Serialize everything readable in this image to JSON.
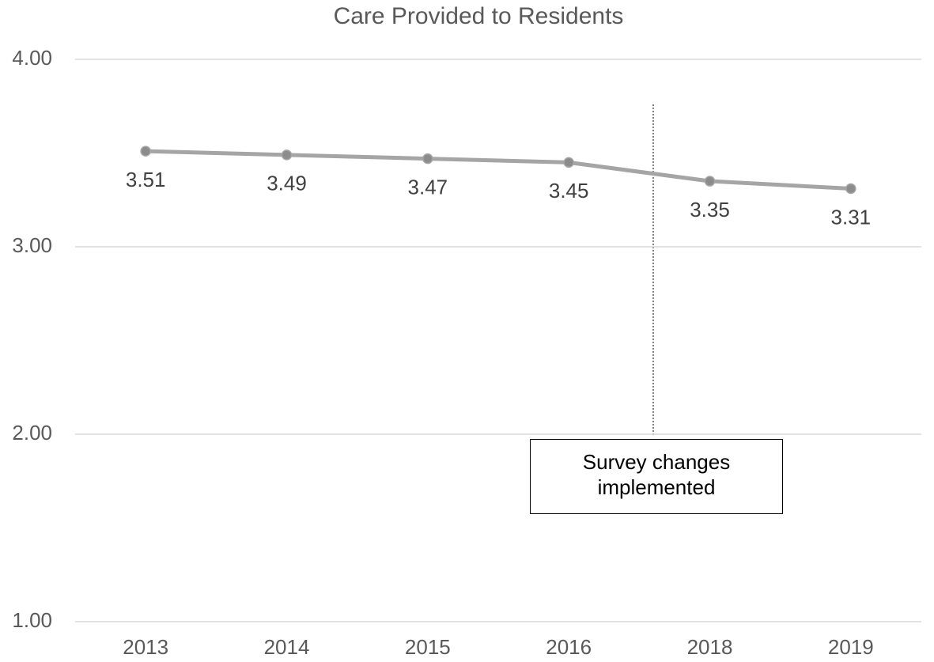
{
  "chart_data": {
    "type": "line",
    "title": "Care Provided to Residents",
    "categories": [
      "2013",
      "2014",
      "2015",
      "2016",
      "2018",
      "2019"
    ],
    "series": [
      {
        "name": "Care Provided to Residents",
        "color": "#a5a5a5",
        "values": [
          3.51,
          3.49,
          3.47,
          3.45,
          3.35,
          3.31
        ]
      }
    ],
    "ylim": [
      1,
      4
    ],
    "yticks": [
      {
        "value": 1,
        "label": "1.00"
      },
      {
        "value": 2,
        "label": "2.00"
      },
      {
        "value": 3,
        "label": "3.00"
      },
      {
        "value": 4,
        "label": "4.00"
      }
    ],
    "grid": true,
    "annotation": "Survey changes implemented"
  }
}
